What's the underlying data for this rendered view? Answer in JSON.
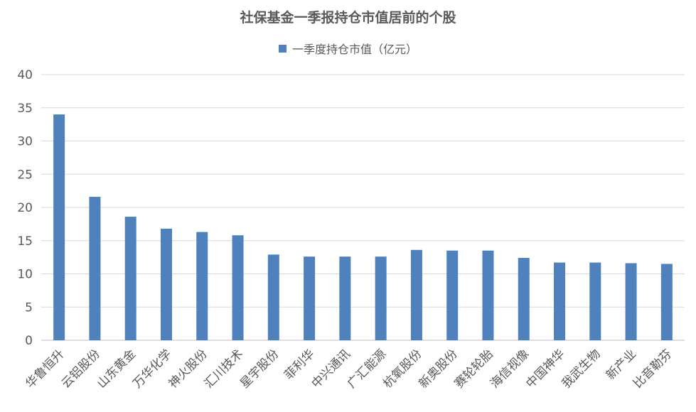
{
  "chart_data": {
    "type": "bar",
    "title": "社保基金一季报持仓市值居前的个股",
    "categories": [
      "华鲁恒升",
      "云铝股份",
      "山东黄金",
      "万华化学",
      "神火股份",
      "汇川技术",
      "星宇股份",
      "菲利华",
      "中兴通讯",
      "广汇能源",
      "杭氧股份",
      "新奥股份",
      "赛轮轮胎",
      "海信视像",
      "中国神华",
      "我武生物",
      "新产业",
      "比音勒芬"
    ],
    "series": [
      {
        "name": "一季度持仓市值（亿元）",
        "values": [
          34.0,
          21.6,
          18.6,
          16.8,
          16.3,
          15.8,
          12.9,
          12.6,
          12.6,
          12.6,
          13.6,
          13.5,
          13.5,
          12.4,
          11.7,
          11.7,
          11.6,
          11.5
        ]
      }
    ],
    "ylim": [
      0,
      40
    ],
    "yticks": [
      "0",
      "5",
      "10",
      "15",
      "20",
      "25",
      "30",
      "35",
      "40"
    ],
    "grid": true,
    "legend_position": "top",
    "color": "#4f81bd"
  }
}
